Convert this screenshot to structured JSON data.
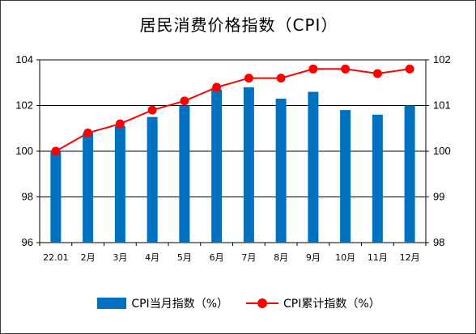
{
  "title": "居民消费价格指数（CPI）",
  "colors": {
    "bar": "#0070C0",
    "line": "#FF0000"
  },
  "legend": {
    "bar_label": "CPI当月指数（%）",
    "line_label": "CPI累计指数（%）"
  },
  "chart_data": {
    "type": "bar",
    "title": "居民消费价格指数（CPI）",
    "categories": [
      "22.01",
      "2月",
      "3月",
      "4月",
      "5月",
      "6月",
      "7月",
      "8月",
      "9月",
      "10月",
      "11月",
      "12月"
    ],
    "series": [
      {
        "name": "CPI当月指数（%）",
        "type": "bar",
        "axis": "left",
        "values": [
          100.0,
          100.8,
          101.1,
          101.5,
          102.0,
          102.7,
          102.8,
          102.3,
          102.6,
          101.8,
          101.6,
          102.0
        ]
      },
      {
        "name": "CPI累计指数（%）",
        "type": "line",
        "axis": "right",
        "values": [
          100.0,
          100.4,
          100.6,
          100.9,
          101.1,
          101.4,
          101.6,
          101.6,
          101.8,
          101.8,
          101.7,
          101.8
        ]
      }
    ],
    "y_left": {
      "min": 96,
      "max": 104,
      "ticks": [
        96,
        98,
        100,
        102,
        104
      ]
    },
    "y_right": {
      "min": 98,
      "max": 102,
      "ticks": [
        98,
        99,
        100,
        101,
        102
      ]
    },
    "grid": true,
    "legend_position": "bottom"
  }
}
